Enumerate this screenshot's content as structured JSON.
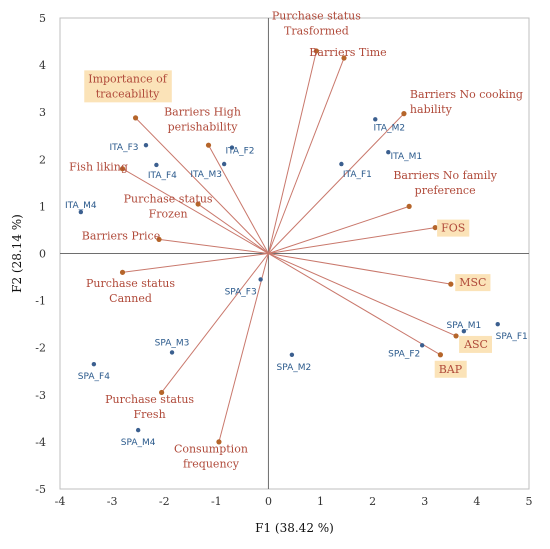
{
  "chart_data": {
    "type": "scatter",
    "title": "",
    "xlabel": "F1 (38.42 %)",
    "ylabel": "F2 (28.14 %)",
    "xlim": [
      -4,
      5
    ],
    "ylim": [
      -5,
      5
    ],
    "xticks": [
      "-4",
      "-3",
      "-2",
      "-1",
      "0",
      "1",
      "2",
      "3",
      "4",
      "5"
    ],
    "yticks": [
      "-5",
      "-4",
      "-3",
      "-2",
      "-1",
      "0",
      "1",
      "2",
      "3",
      "4",
      "5"
    ],
    "colors": {
      "vector": "#c9786c",
      "variable_point": "#b5652a",
      "observation_point": "#3b5f8f",
      "variable_text": "#b04a3a",
      "observation_text": "#2b5a8c",
      "highlight": "#fbe3b8"
    },
    "variables": [
      {
        "lines": [
          "Purchase status",
          "Trasformed"
        ],
        "x": 0.92,
        "y": 4.3,
        "highlight": false
      },
      {
        "lines": [
          "Barriers Time"
        ],
        "x": 1.45,
        "y": 4.15,
        "highlight": false
      },
      {
        "lines": [
          "Barriers No cooking",
          "hability"
        ],
        "x": 2.6,
        "y": 2.97,
        "highlight": false
      },
      {
        "lines": [
          "Importance of",
          "traceability"
        ],
        "x": -2.55,
        "y": 2.88,
        "highlight": true
      },
      {
        "lines": [
          "Barriers High",
          "perishability"
        ],
        "x": -1.15,
        "y": 2.3,
        "highlight": false
      },
      {
        "lines": [
          "Fish liking"
        ],
        "x": -2.8,
        "y": 1.8,
        "highlight": false
      },
      {
        "lines": [
          "Purchase status",
          "Frozen"
        ],
        "x": -1.35,
        "y": 1.05,
        "highlight": false
      },
      {
        "lines": [
          "Barriers Price"
        ],
        "x": -2.1,
        "y": 0.3,
        "highlight": false
      },
      {
        "lines": [
          "Purchase status",
          "Canned"
        ],
        "x": -2.8,
        "y": -0.4,
        "highlight": false
      },
      {
        "lines": [
          "Barriers No family",
          "preference"
        ],
        "x": 2.7,
        "y": 1.0,
        "highlight": false
      },
      {
        "lines": [
          "FOS"
        ],
        "x": 3.2,
        "y": 0.55,
        "highlight": true
      },
      {
        "lines": [
          "MSC"
        ],
        "x": 3.5,
        "y": -0.65,
        "highlight": true
      },
      {
        "lines": [
          "ASC"
        ],
        "x": 3.6,
        "y": -1.75,
        "highlight": true
      },
      {
        "lines": [
          "BAP"
        ],
        "x": 3.3,
        "y": -2.15,
        "highlight": true
      },
      {
        "lines": [
          "Purchase status",
          "Fresh"
        ],
        "x": -2.05,
        "y": -2.95,
        "highlight": false
      },
      {
        "lines": [
          "Consumption",
          "frequency"
        ],
        "x": -0.95,
        "y": -4.0,
        "highlight": false
      }
    ],
    "observations": [
      {
        "label": "ITA_F3",
        "x": -2.35,
        "y": 2.3
      },
      {
        "label": "ITA_F4",
        "x": -2.15,
        "y": 1.88
      },
      {
        "label": "ITA_M4",
        "x": -3.6,
        "y": 0.88
      },
      {
        "label": "ITA_F2",
        "x": -0.7,
        "y": 2.25
      },
      {
        "label": "ITA_M3",
        "x": -0.85,
        "y": 1.9
      },
      {
        "label": "ITA_M2",
        "x": 2.05,
        "y": 2.85
      },
      {
        "label": "ITA_M1",
        "x": 2.3,
        "y": 2.15
      },
      {
        "label": "ITA_F1",
        "x": 1.4,
        "y": 1.9
      },
      {
        "label": "SPA_F3",
        "x": -0.15,
        "y": -0.55
      },
      {
        "label": "SPA_M3",
        "x": -1.85,
        "y": -2.1
      },
      {
        "label": "SPA_F4",
        "x": -3.35,
        "y": -2.35
      },
      {
        "label": "SPA_M4",
        "x": -2.5,
        "y": -3.75
      },
      {
        "label": "SPA_M2",
        "x": 0.45,
        "y": -2.15
      },
      {
        "label": "SPA_M1",
        "x": 3.75,
        "y": -1.65
      },
      {
        "label": "SPA_F1",
        "x": 4.4,
        "y": -1.5
      },
      {
        "label": "SPA_F2",
        "x": 2.95,
        "y": -1.95
      }
    ]
  }
}
